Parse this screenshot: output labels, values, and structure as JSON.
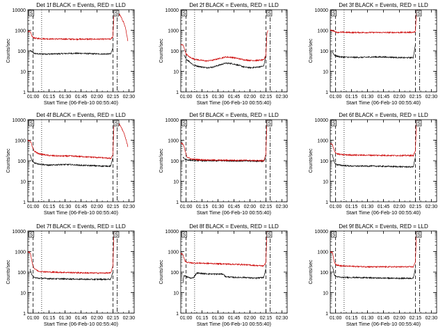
{
  "figure": {
    "xlabel": "Start Time (06-Feb-10 00:55:40)",
    "ylabel": "Counts/sec",
    "x_tick_labels": [
      "01:00",
      "01:15",
      "01:30",
      "01:45",
      "02:00",
      "02:15",
      "02:30"
    ],
    "y_tick_labels": [
      "1",
      "10",
      "100",
      "1000",
      "10000"
    ],
    "colors": {
      "events": "#000000",
      "lld": "#cc0000",
      "axes": "#000000"
    }
  },
  "chart_data": [
    {
      "type": "line",
      "title": "Det 1f BLACK = Events, RED = LLD",
      "x_unit": "minutes since 00:55:40",
      "xlim": [
        0,
        100
      ],
      "ylim": [
        1,
        10000
      ],
      "y_scale": "log",
      "markers": {
        "dashed": [
          5,
          80
        ],
        "dotted": [
          13
        ],
        "dashdot": [
          84
        ],
        "box_labels": [
          {
            "x": 1,
            "text": "S"
          },
          {
            "x": 81,
            "text": "S"
          }
        ]
      },
      "series": [
        {
          "name": "Events",
          "color": "#000000",
          "x": [
            2,
            4,
            6,
            10,
            20,
            30,
            40,
            50,
            60,
            70,
            78,
            80
          ],
          "y": [
            100,
            90,
            75,
            70,
            70,
            72,
            75,
            75,
            72,
            70,
            70,
            150
          ]
        },
        {
          "name": "LLD",
          "color": "#cc0000",
          "x": [
            0,
            1,
            2,
            3,
            4,
            5,
            6,
            8,
            20,
            40,
            60,
            78,
            80,
            81,
            82,
            84,
            86,
            88,
            90,
            92,
            94
          ],
          "y": [
            900,
            880,
            850,
            700,
            500,
            450,
            420,
            400,
            380,
            370,
            370,
            370,
            500,
            6000,
            9000,
            8000,
            6000,
            4000,
            2500,
            1200,
            300
          ]
        }
      ]
    },
    {
      "type": "line",
      "title": "Det 2f BLACK = Events, RED = LLD",
      "x_unit": "minutes since 00:55:40",
      "xlim": [
        0,
        100
      ],
      "ylim": [
        1,
        10000
      ],
      "y_scale": "log",
      "markers": {
        "dashed": [
          5,
          80
        ],
        "dotted": [
          13
        ],
        "dashdot": [
          84
        ],
        "box_labels": [
          {
            "x": 1,
            "text": "S"
          },
          {
            "x": 81,
            "text": "S"
          }
        ]
      },
      "series": [
        {
          "name": "Events",
          "color": "#000000",
          "x": [
            3,
            5,
            8,
            12,
            18,
            24,
            30,
            36,
            42,
            48,
            54,
            60,
            66,
            72,
            78,
            80
          ],
          "y": [
            60,
            40,
            30,
            20,
            17,
            15,
            16,
            20,
            25,
            24,
            20,
            16,
            15,
            16,
            18,
            60
          ]
        },
        {
          "name": "LLD",
          "color": "#cc0000",
          "x": [
            0,
            2,
            3,
            4,
            5,
            8,
            12,
            18,
            24,
            30,
            36,
            42,
            48,
            54,
            60,
            66,
            72,
            78,
            80,
            81,
            82
          ],
          "y": [
            200,
            190,
            150,
            100,
            70,
            50,
            40,
            35,
            32,
            35,
            42,
            50,
            48,
            42,
            36,
            34,
            34,
            36,
            60,
            700,
            1000
          ]
        }
      ]
    },
    {
      "type": "line",
      "title": "Det 3f BLACK = Events, RED = LLD",
      "x_unit": "minutes since 00:55:40",
      "xlim": [
        0,
        100
      ],
      "ylim": [
        1,
        10000
      ],
      "y_scale": "log",
      "markers": {
        "dashed": [
          5,
          80
        ],
        "dotted": [
          13
        ],
        "dashdot": [
          84
        ],
        "box_labels": [
          {
            "x": 1,
            "text": "S"
          },
          {
            "x": 81,
            "text": "S"
          }
        ]
      },
      "series": [
        {
          "name": "Events",
          "color": "#000000",
          "x": [
            2,
            4,
            6,
            10,
            20,
            30,
            40,
            50,
            60,
            70,
            78,
            80
          ],
          "y": [
            90,
            60,
            55,
            50,
            48,
            48,
            50,
            50,
            48,
            46,
            47,
            200
          ]
        },
        {
          "name": "LLD",
          "color": "#cc0000",
          "x": [
            0,
            2,
            4,
            6,
            10,
            20,
            40,
            60,
            78,
            80,
            81,
            82
          ],
          "y": [
            1000,
            950,
            900,
            800,
            800,
            780,
            780,
            780,
            800,
            850,
            9000,
            9000
          ]
        }
      ]
    },
    {
      "type": "line",
      "title": "Det 4f BLACK = Events, RED = LLD",
      "x_unit": "minutes since 00:55:40",
      "xlim": [
        0,
        100
      ],
      "ylim": [
        1,
        10000
      ],
      "y_scale": "log",
      "markers": {
        "dashed": [
          5,
          80
        ],
        "dotted": [
          13
        ],
        "dashdot": [
          84
        ],
        "box_labels": [
          {
            "x": 1,
            "text": "S"
          },
          {
            "x": 81,
            "text": "S"
          }
        ]
      },
      "series": [
        {
          "name": "Events",
          "color": "#000000",
          "x": [
            2,
            4,
            6,
            10,
            20,
            30,
            40,
            50,
            60,
            70,
            78,
            80
          ],
          "y": [
            200,
            100,
            80,
            70,
            60,
            65,
            65,
            60,
            58,
            55,
            55,
            150
          ]
        },
        {
          "name": "LLD",
          "color": "#cc0000",
          "x": [
            0,
            1,
            2,
            3,
            4,
            6,
            10,
            20,
            30,
            40,
            50,
            60,
            70,
            78,
            80,
            81,
            82,
            84,
            86,
            88,
            90,
            92,
            94
          ],
          "y": [
            1000,
            950,
            900,
            800,
            500,
            300,
            220,
            180,
            170,
            170,
            160,
            150,
            140,
            130,
            200,
            6000,
            9000,
            8000,
            6000,
            4000,
            2500,
            1200,
            500
          ]
        }
      ]
    },
    {
      "type": "line",
      "title": "Det 5f BLACK = Events, RED = LLD",
      "x_unit": "minutes since 00:55:40",
      "xlim": [
        0,
        100
      ],
      "ylim": [
        1,
        10000
      ],
      "y_scale": "log",
      "markers": {
        "dashed": [
          5,
          80
        ],
        "dotted": [
          13
        ],
        "dashdot": [
          84
        ],
        "box_labels": [
          {
            "x": 1,
            "text": "S"
          },
          {
            "x": 81,
            "text": "S"
          }
        ]
      },
      "series": [
        {
          "name": "Events",
          "color": "#000000",
          "x": [
            2,
            4,
            6,
            10,
            20,
            40,
            60,
            78,
            80
          ],
          "y": [
            150,
            120,
            110,
            105,
            100,
            100,
            98,
            95,
            150
          ]
        },
        {
          "name": "LLD",
          "color": "#cc0000",
          "x": [
            0,
            2,
            3,
            4,
            6,
            10,
            20,
            40,
            60,
            78,
            80,
            81,
            82
          ],
          "y": [
            700,
            650,
            500,
            300,
            150,
            120,
            110,
            105,
            105,
            100,
            200,
            9000,
            9000
          ]
        }
      ]
    },
    {
      "type": "line",
      "title": "Det 6f BLACK = Events, RED = LLD",
      "x_unit": "minutes since 00:55:40",
      "xlim": [
        0,
        100
      ],
      "ylim": [
        1,
        10000
      ],
      "y_scale": "log",
      "markers": {
        "dashed": [
          5,
          80
        ],
        "dotted": [
          13
        ],
        "dashdot": [
          84
        ],
        "box_labels": [
          {
            "x": 1,
            "text": "S"
          },
          {
            "x": 81,
            "text": "S"
          }
        ]
      },
      "series": [
        {
          "name": "Events",
          "color": "#000000",
          "x": [
            2,
            4,
            6,
            10,
            20,
            40,
            60,
            78,
            80
          ],
          "y": [
            200,
            80,
            65,
            60,
            55,
            55,
            52,
            50,
            150
          ]
        },
        {
          "name": "LLD",
          "color": "#cc0000",
          "x": [
            0,
            2,
            3,
            4,
            6,
            10,
            20,
            40,
            60,
            78,
            80,
            81,
            82
          ],
          "y": [
            700,
            600,
            400,
            300,
            220,
            200,
            190,
            185,
            180,
            180,
            300,
            9000,
            9000
          ]
        }
      ]
    },
    {
      "type": "line",
      "title": "Det 7f BLACK = Events, RED = LLD",
      "x_unit": "minutes since 00:55:40",
      "xlim": [
        0,
        100
      ],
      "ylim": [
        1,
        10000
      ],
      "y_scale": "log",
      "markers": {
        "dashed": [
          5,
          80
        ],
        "dotted": [
          13
        ],
        "dashdot": [
          84
        ],
        "box_labels": [
          {
            "x": 1,
            "text": "S"
          },
          {
            "x": 81,
            "text": "S"
          }
        ]
      },
      "series": [
        {
          "name": "Events",
          "color": "#000000",
          "x": [
            2,
            4,
            6,
            10,
            20,
            40,
            60,
            78,
            80
          ],
          "y": [
            150,
            70,
            55,
            50,
            48,
            46,
            44,
            45,
            100
          ]
        },
        {
          "name": "LLD",
          "color": "#cc0000",
          "x": [
            0,
            1,
            2,
            3,
            4,
            6,
            10,
            20,
            40,
            60,
            78,
            80,
            81,
            82
          ],
          "y": [
            1000,
            950,
            900,
            600,
            300,
            150,
            110,
            100,
            95,
            90,
            90,
            200,
            9000,
            9000
          ]
        }
      ]
    },
    {
      "type": "line",
      "title": "Det 8f BLACK = Events, RED = LLD",
      "x_unit": "minutes since 00:55:40",
      "xlim": [
        0,
        100
      ],
      "ylim": [
        1,
        10000
      ],
      "y_scale": "log",
      "markers": {
        "dashed": [
          5,
          80
        ],
        "dotted": [
          13
        ],
        "dashdot": [
          84
        ],
        "box_labels": [
          {
            "x": 1,
            "text": "S"
          },
          {
            "x": 81,
            "text": "S"
          }
        ]
      },
      "series": [
        {
          "name": "Events",
          "color": "#000000",
          "x": [
            2,
            3,
            5,
            10,
            12,
            15,
            20,
            30,
            40,
            42,
            50,
            60,
            70,
            78,
            80
          ],
          "y": [
            30,
            70,
            60,
            50,
            55,
            90,
            85,
            80,
            80,
            60,
            55,
            55,
            50,
            55,
            150
          ]
        },
        {
          "name": "LLD",
          "color": "#cc0000",
          "x": [
            0,
            2,
            3,
            4,
            6,
            10,
            20,
            30,
            40,
            50,
            60,
            70,
            78,
            80,
            81,
            82
          ],
          "y": [
            800,
            700,
            500,
            350,
            300,
            280,
            270,
            260,
            250,
            240,
            230,
            210,
            200,
            300,
            9000,
            9000
          ]
        }
      ]
    },
    {
      "type": "line",
      "title": "Det 9f BLACK = Events, RED = LLD",
      "x_unit": "minutes since 00:55:40",
      "xlim": [
        0,
        100
      ],
      "ylim": [
        1,
        10000
      ],
      "y_scale": "log",
      "markers": {
        "dashed": [
          5,
          80
        ],
        "dotted": [
          13
        ],
        "dashdot": [
          84
        ],
        "box_labels": [
          {
            "x": 1,
            "text": "S"
          },
          {
            "x": 81,
            "text": "S"
          }
        ]
      },
      "series": [
        {
          "name": "Events",
          "color": "#000000",
          "x": [
            2,
            4,
            6,
            10,
            20,
            40,
            60,
            78,
            80
          ],
          "y": [
            200,
            70,
            60,
            55,
            55,
            52,
            50,
            50,
            150
          ]
        },
        {
          "name": "LLD",
          "color": "#cc0000",
          "x": [
            0,
            2,
            3,
            4,
            6,
            10,
            20,
            40,
            60,
            78,
            80,
            81,
            82
          ],
          "y": [
            1000,
            900,
            500,
            300,
            220,
            200,
            190,
            180,
            180,
            180,
            300,
            9000,
            9000
          ]
        }
      ]
    }
  ]
}
